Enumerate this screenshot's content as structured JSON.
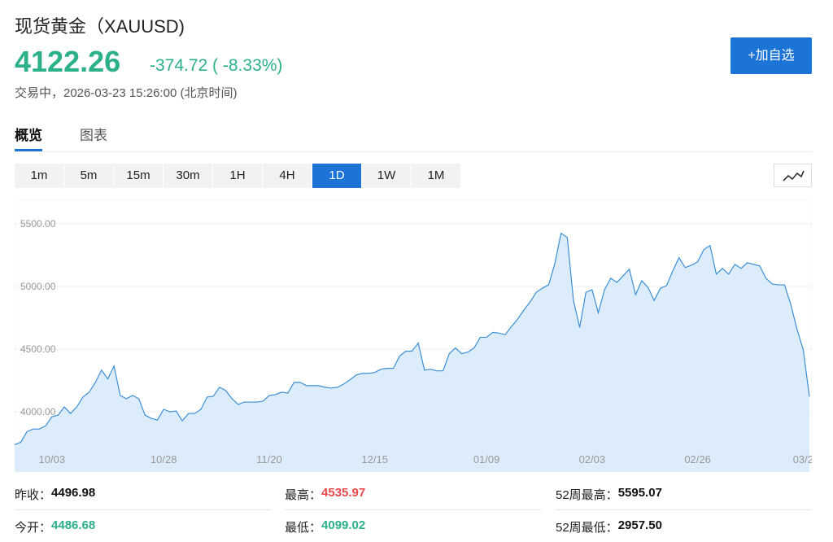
{
  "header": {
    "title": "现货黄金（XAUUSD)",
    "price": "4122.26",
    "change": "-374.72 ( -8.33%)",
    "status": "交易中，2026-03-23 15:26:00 (北京时间)"
  },
  "button": "+加自选",
  "tabs": [
    "概览",
    "图表"
  ],
  "active_tab": 0,
  "intervals": [
    "1m",
    "5m",
    "15m",
    "30m",
    "1H",
    "4H",
    "1D",
    "1W",
    "1M"
  ],
  "active_interval": 6,
  "chart_data": {
    "type": "area",
    "color": "#3b8fd6",
    "fill": "#dcecfa",
    "grid": true,
    "ylim": [
      3520,
      5695
    ],
    "yticks": [
      {
        "value": 4000,
        "label": "4000.00"
      },
      {
        "value": 4500,
        "label": "4500.00"
      },
      {
        "value": 5000,
        "label": "5000.00"
      },
      {
        "value": 5500,
        "label": "5500.00"
      }
    ],
    "categories": [
      null,
      null,
      null,
      null,
      null,
      null,
      "10/03",
      null,
      null,
      null,
      null,
      null,
      null,
      null,
      null,
      null,
      null,
      null,
      null,
      null,
      null,
      null,
      null,
      null,
      "10/28",
      null,
      null,
      null,
      null,
      null,
      null,
      null,
      null,
      null,
      null,
      null,
      null,
      null,
      null,
      null,
      null,
      "11/20",
      null,
      null,
      null,
      null,
      null,
      null,
      null,
      null,
      null,
      null,
      null,
      null,
      null,
      null,
      null,
      null,
      "12/15",
      null,
      null,
      null,
      null,
      null,
      null,
      null,
      null,
      null,
      null,
      null,
      null,
      null,
      null,
      null,
      null,
      null,
      "01/09",
      null,
      null,
      null,
      null,
      null,
      null,
      null,
      null,
      null,
      null,
      null,
      null,
      null,
      null,
      null,
      null,
      "02/03",
      null,
      null,
      null,
      null,
      null,
      null,
      null,
      null,
      null,
      null,
      null,
      null,
      null,
      null,
      null,
      null,
      "02/26",
      null,
      null,
      null,
      null,
      null,
      null,
      null,
      null,
      null,
      null,
      null,
      null,
      null,
      null,
      null,
      null,
      "03/2",
      null
    ],
    "values": [
      3738,
      3758,
      3843,
      3863,
      3863,
      3889,
      3961,
      3974,
      4039,
      3987,
      4039,
      4118,
      4157,
      4235,
      4333,
      4262,
      4366,
      4131,
      4105,
      4131,
      4105,
      3974,
      3948,
      3935,
      4020,
      4000,
      4007,
      3928,
      3987,
      3987,
      4020,
      4118,
      4124,
      4196,
      4170,
      4105,
      4059,
      4078,
      4078,
      4078,
      4085,
      4131,
      4137,
      4157,
      4150,
      4235,
      4235,
      4209,
      4209,
      4209,
      4196,
      4190,
      4196,
      4222,
      4255,
      4294,
      4307,
      4307,
      4314,
      4340,
      4347,
      4347,
      4445,
      4484,
      4484,
      4549,
      4333,
      4340,
      4327,
      4327,
      4464,
      4510,
      4464,
      4477,
      4510,
      4595,
      4595,
      4634,
      4628,
      4615,
      4680,
      4739,
      4811,
      4876,
      4954,
      4987,
      5013,
      5183,
      5425,
      5392,
      4889,
      4673,
      4954,
      4974,
      4791,
      4974,
      5066,
      5033,
      5085,
      5138,
      4935,
      5046,
      4993,
      4889,
      4987,
      5007,
      5125,
      5230,
      5151,
      5170,
      5197,
      5295,
      5327,
      5099,
      5144,
      5099,
      5177,
      5144,
      5190,
      5177,
      5164,
      5066,
      5020,
      5013,
      5013,
      4857,
      4660,
      4497,
      4122
    ]
  },
  "stats": [
    {
      "label": "昨收：",
      "value": "4496.98",
      "color": "#111111"
    },
    {
      "label": "最高：",
      "value": "4535.97",
      "color": "#e8494a"
    },
    {
      "label": "52周最高：",
      "value": "5595.07",
      "color": "#111111"
    },
    {
      "label": "今开：",
      "value": "4486.68",
      "color": "#2bb087"
    },
    {
      "label": "最低：",
      "value": "4099.02",
      "color": "#2bb087"
    },
    {
      "label": "52周最低：",
      "value": "2957.50",
      "color": "#111111"
    }
  ]
}
